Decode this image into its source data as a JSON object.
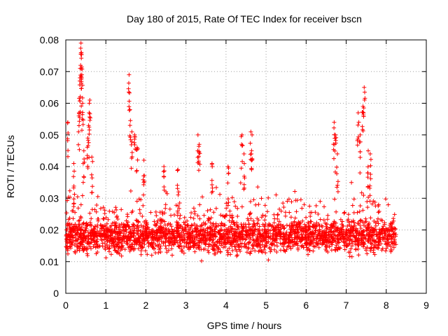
{
  "chart_data": {
    "type": "scatter",
    "title": "Day 180 of 2015, Rate Of TEC Index for receiver bscn",
    "xlabel": "GPS time / hours",
    "ylabel": "ROTI / TECUs",
    "xlim": [
      0,
      9
    ],
    "ylim": [
      0,
      0.08
    ],
    "xticks": [
      0,
      1,
      2,
      3,
      4,
      5,
      6,
      7,
      8,
      9
    ],
    "yticks": [
      0,
      0.01,
      0.02,
      0.03,
      0.04,
      0.05,
      0.06,
      0.07,
      0.08
    ],
    "xtick_labels": [
      "0",
      "1",
      "2",
      "3",
      "4",
      "5",
      "6",
      "7",
      "8",
      "9"
    ],
    "ytick_labels": [
      "0",
      "0.01",
      "0.02",
      "0.03",
      "0.04",
      "0.05",
      "0.06",
      "0.07",
      "0.08"
    ],
    "grid": true,
    "marker": "+",
    "color": "#ff0000",
    "x_range_of_data": [
      0.0,
      8.25
    ],
    "typical_band": [
      0.008,
      0.03
    ],
    "series": [
      {
        "name": "bscn",
        "notable_points": [
          {
            "x": 0.05,
            "y": 0.054
          },
          {
            "x": 0.2,
            "y": 0.041
          },
          {
            "x": 0.33,
            "y": 0.057
          },
          {
            "x": 0.35,
            "y": 0.067
          },
          {
            "x": 0.37,
            "y": 0.072
          },
          {
            "x": 0.38,
            "y": 0.079
          },
          {
            "x": 0.39,
            "y": 0.076
          },
          {
            "x": 0.4,
            "y": 0.069
          },
          {
            "x": 0.42,
            "y": 0.06
          },
          {
            "x": 0.45,
            "y": 0.045
          },
          {
            "x": 0.55,
            "y": 0.049
          },
          {
            "x": 0.57,
            "y": 0.053
          },
          {
            "x": 0.6,
            "y": 0.061
          },
          {
            "x": 0.65,
            "y": 0.043
          },
          {
            "x": 1.58,
            "y": 0.069
          },
          {
            "x": 1.6,
            "y": 0.058
          },
          {
            "x": 1.65,
            "y": 0.051
          },
          {
            "x": 1.72,
            "y": 0.05
          },
          {
            "x": 1.78,
            "y": 0.046
          },
          {
            "x": 1.95,
            "y": 0.042
          },
          {
            "x": 2.45,
            "y": 0.04
          },
          {
            "x": 2.8,
            "y": 0.039
          },
          {
            "x": 3.3,
            "y": 0.05
          },
          {
            "x": 3.33,
            "y": 0.047
          },
          {
            "x": 3.65,
            "y": 0.041
          },
          {
            "x": 4.05,
            "y": 0.04
          },
          {
            "x": 4.4,
            "y": 0.05
          },
          {
            "x": 4.45,
            "y": 0.044
          },
          {
            "x": 4.62,
            "y": 0.051
          },
          {
            "x": 4.65,
            "y": 0.05
          },
          {
            "x": 6.7,
            "y": 0.054
          },
          {
            "x": 6.73,
            "y": 0.05
          },
          {
            "x": 6.78,
            "y": 0.044
          },
          {
            "x": 7.3,
            "y": 0.057
          },
          {
            "x": 7.35,
            "y": 0.05
          },
          {
            "x": 7.42,
            "y": 0.059
          },
          {
            "x": 7.45,
            "y": 0.065
          },
          {
            "x": 7.55,
            "y": 0.045
          },
          {
            "x": 7.6,
            "y": 0.044
          }
        ]
      }
    ]
  }
}
